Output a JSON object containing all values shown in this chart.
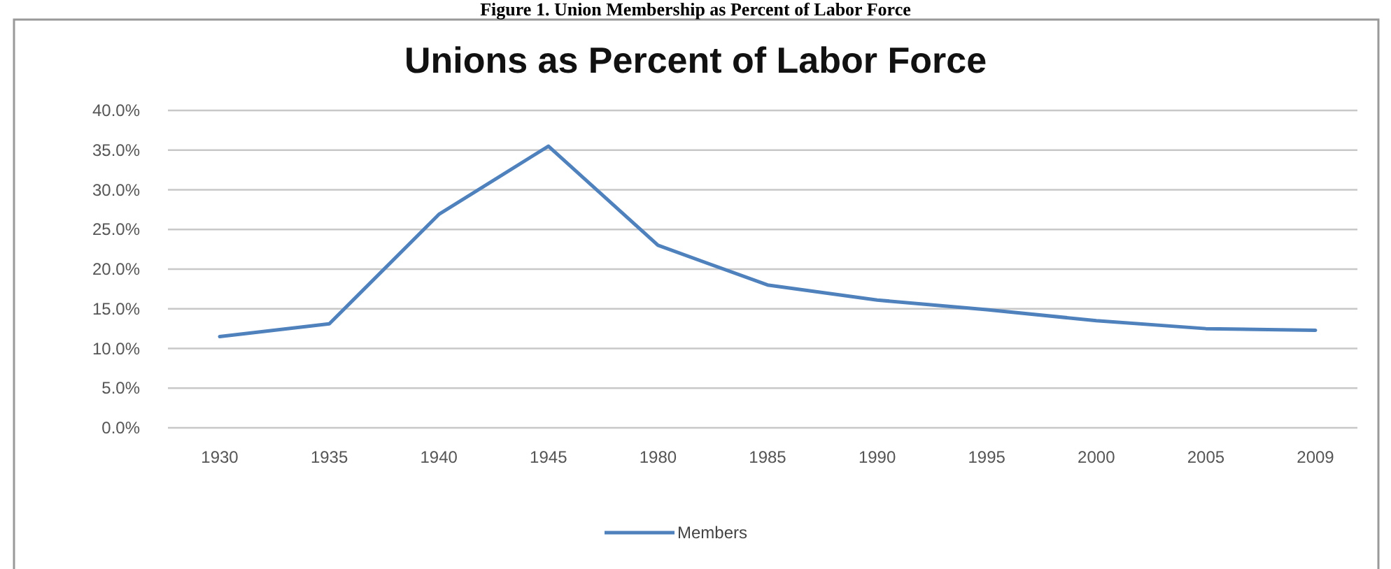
{
  "chart_data": {
    "type": "line",
    "title": "Unions as Percent of Labor Force",
    "annotations": [
      "Figure 1.  Union Membership as Percent of Labor Force"
    ],
    "categories": [
      "1930",
      "1935",
      "1940",
      "1945",
      "1980",
      "1985",
      "1990",
      "1995",
      "2000",
      "2005",
      "2009"
    ],
    "series": [
      {
        "name": "Members",
        "color": "#4f81bd",
        "values": [
          11.5,
          13.1,
          26.9,
          35.5,
          23.0,
          18.0,
          16.1,
          14.9,
          13.5,
          12.5,
          12.3
        ]
      }
    ],
    "ylim": [
      0,
      40
    ],
    "yticks": [
      {
        "value": 0,
        "label": "0.0%"
      },
      {
        "value": 5,
        "label": "5.0%"
      },
      {
        "value": 10,
        "label": "10.0%"
      },
      {
        "value": 15,
        "label": "15.0%"
      },
      {
        "value": 20,
        "label": "20.0%"
      },
      {
        "value": 25,
        "label": "25.0%"
      },
      {
        "value": 30,
        "label": "30.0%"
      },
      {
        "value": 35,
        "label": "35.0%"
      },
      {
        "value": 40,
        "label": "40.0%"
      }
    ],
    "grid": "y",
    "legend": "bottom",
    "marker": "none",
    "line_style": "solid"
  }
}
